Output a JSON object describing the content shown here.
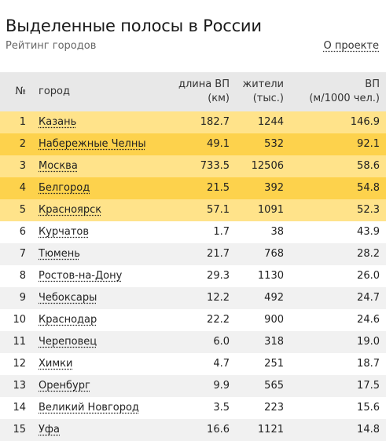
{
  "header": {
    "title": "Выделенные полосы в России",
    "subtitle": "Рейтинг городов",
    "about_link": "О проекте"
  },
  "table": {
    "columns": {
      "num": "№",
      "city": "город",
      "length_line1": "длина ВП",
      "length_line2": "(км)",
      "pop_line1": "жители",
      "pop_line2": "(тыс.)",
      "ratio_line1": "ВП",
      "ratio_line2": "(м/1000 чел.)"
    },
    "rows": [
      {
        "num": "1",
        "city": "Казань",
        "length": "182.7",
        "pop": "1244",
        "ratio": "146.9",
        "highlight": "light"
      },
      {
        "num": "2",
        "city": "Набережные Челны",
        "length": "49.1",
        "pop": "532",
        "ratio": "92.1",
        "highlight": "strong"
      },
      {
        "num": "3",
        "city": "Москва",
        "length": "733.5",
        "pop": "12506",
        "ratio": "58.6",
        "highlight": "light"
      },
      {
        "num": "4",
        "city": "Белгород",
        "length": "21.5",
        "pop": "392",
        "ratio": "54.8",
        "highlight": "strong"
      },
      {
        "num": "5",
        "city": "Красноярск",
        "length": "57.1",
        "pop": "1091",
        "ratio": "52.3",
        "highlight": "light"
      },
      {
        "num": "6",
        "city": "Курчатов",
        "length": "1.7",
        "pop": "38",
        "ratio": "43.9",
        "highlight": ""
      },
      {
        "num": "7",
        "city": "Тюмень",
        "length": "21.7",
        "pop": "768",
        "ratio": "28.2",
        "highlight": ""
      },
      {
        "num": "8",
        "city": "Ростов-на-Дону",
        "length": "29.3",
        "pop": "1130",
        "ratio": "26.0",
        "highlight": ""
      },
      {
        "num": "9",
        "city": "Чебоксары",
        "length": "12.2",
        "pop": "492",
        "ratio": "24.7",
        "highlight": ""
      },
      {
        "num": "10",
        "city": "Краснодар",
        "length": "22.2",
        "pop": "900",
        "ratio": "24.6",
        "highlight": ""
      },
      {
        "num": "11",
        "city": "Череповец",
        "length": "6.0",
        "pop": "318",
        "ratio": "19.0",
        "highlight": ""
      },
      {
        "num": "12",
        "city": "Химки",
        "length": "4.7",
        "pop": "251",
        "ratio": "18.7",
        "highlight": ""
      },
      {
        "num": "13",
        "city": "Оренбург",
        "length": "9.9",
        "pop": "565",
        "ratio": "17.5",
        "highlight": ""
      },
      {
        "num": "14",
        "city": "Великий Новгород",
        "length": "3.5",
        "pop": "223",
        "ratio": "15.6",
        "highlight": ""
      },
      {
        "num": "15",
        "city": "Уфа",
        "length": "16.6",
        "pop": "1121",
        "ratio": "14.8",
        "highlight": ""
      }
    ]
  },
  "colors": {
    "highlight_light": "#ffe38a",
    "highlight_strong": "#fdd24c",
    "header_bg": "#e8e8e8",
    "row_alt": "#f1f1f1"
  }
}
